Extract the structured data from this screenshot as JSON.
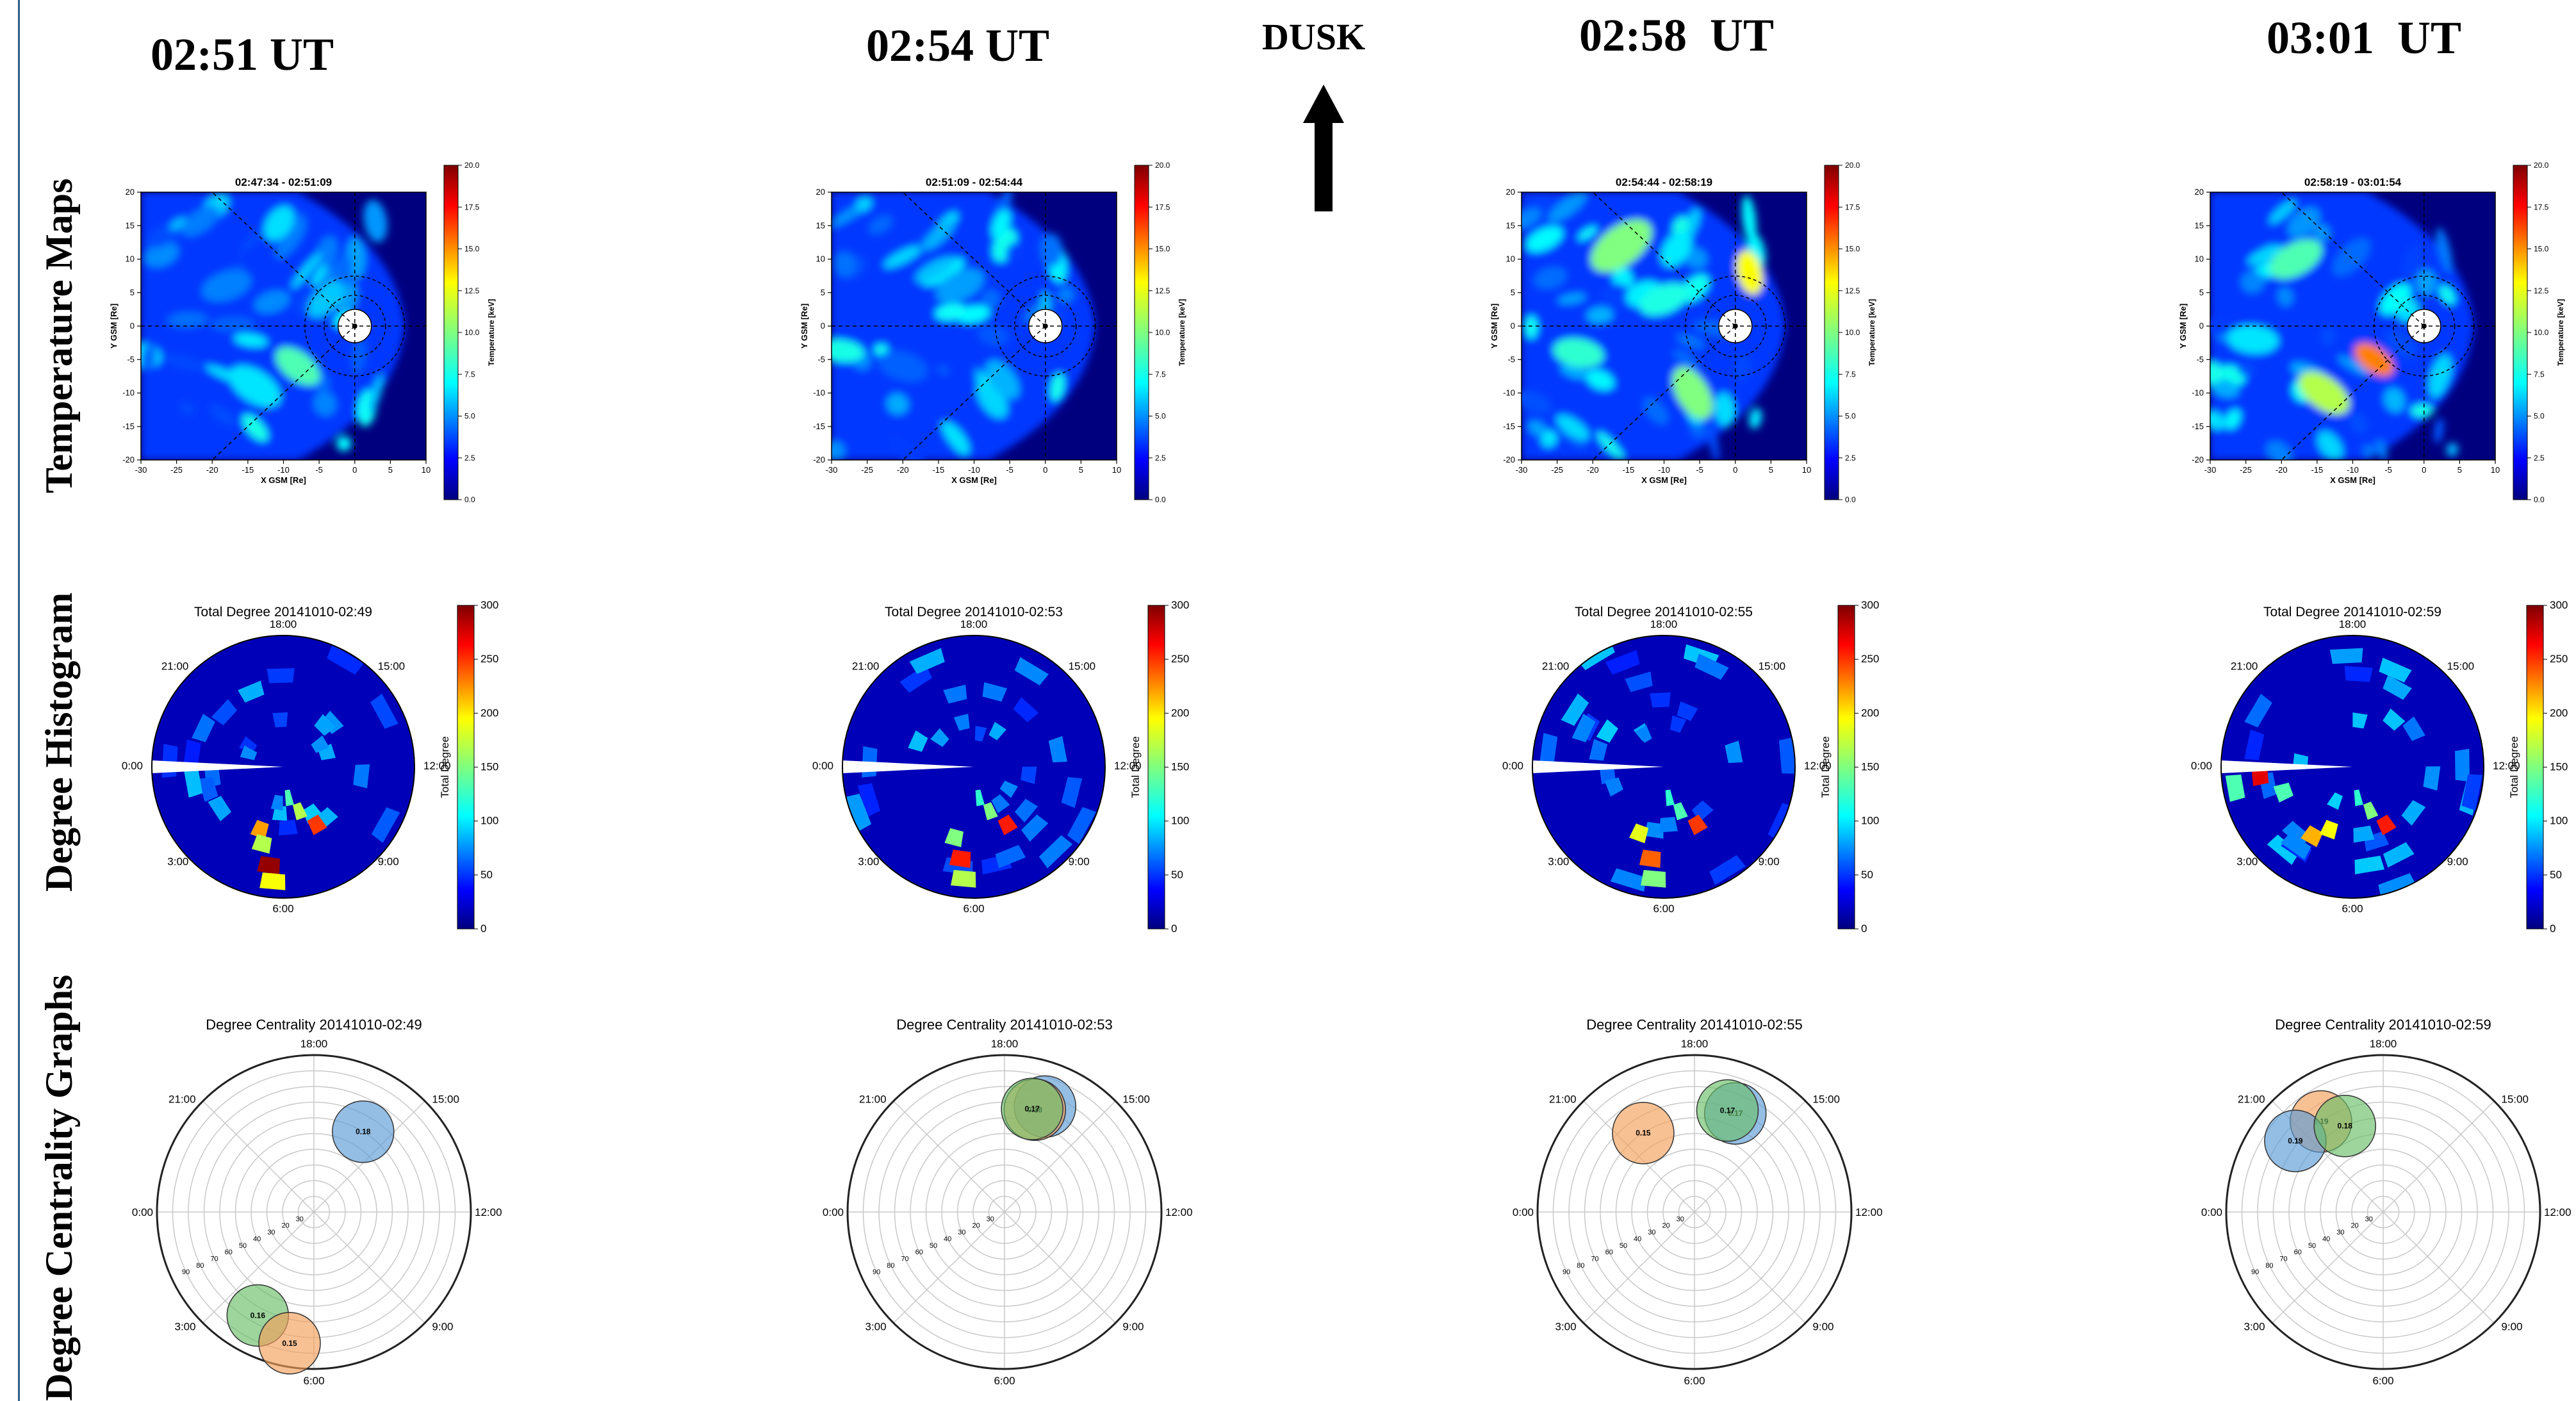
{
  "figure": {
    "column_titles": [
      "02:51 UT",
      "02:54 UT",
      "02:58  UT",
      "03:01  UT"
    ],
    "direction_label": "DUSK",
    "row_labels": [
      "Temperature Maps",
      "Degree Histogram",
      "Degree Centrality  Graphs"
    ],
    "colors": {
      "arrow": "#000000",
      "panel_border": "#2f5f8a",
      "colormap": "jet"
    }
  },
  "chart_data": [
    {
      "type": "heatmap",
      "group": "temperature_maps",
      "titles": [
        "02:47:34 - 02:51:09",
        "02:51:09 - 02:54:44",
        "02:54:44 - 02:58:19",
        "02:58:19 - 03:01:54"
      ],
      "xlabel": "X GSM [Re]",
      "ylabel": "Y GSM [Re]",
      "xlim": [
        -30,
        10
      ],
      "ylim": [
        -20,
        20
      ],
      "x_ticks": [
        "-30",
        "-25",
        "-20",
        "-15",
        "-10",
        "-5",
        "0",
        "5",
        "10"
      ],
      "y_ticks": [
        "20",
        "15",
        "10",
        "5",
        "0",
        "-5",
        "-10",
        "-15",
        "-20"
      ],
      "colorbar": {
        "label": "Temperature [keV]",
        "range": [
          0,
          20
        ],
        "ticks": [
          "20.0",
          "17.5",
          "15.0",
          "12.5",
          "10.0",
          "7.5",
          "5.0",
          "2.5",
          "0.0"
        ]
      },
      "colormap": "jet"
    },
    {
      "type": "heatmap",
      "group": "degree_histogram",
      "titles": [
        "Total Degree 20141010-02:49",
        "Total Degree 20141010-02:53",
        "Total Degree 20141010-02:55",
        "Total Degree 20141010-02:59"
      ],
      "clock_labels": [
        "18:00",
        "15:00",
        "12:00",
        "9:00",
        "6:00",
        "3:00",
        "0:00",
        "21:00"
      ],
      "colorbar": {
        "label": "Total Degree",
        "range": [
          0,
          300
        ],
        "ticks": [
          "300",
          "250",
          "200",
          "150",
          "100",
          "50",
          "0"
        ]
      },
      "colormap": "jet"
    },
    {
      "type": "scatter",
      "group": "degree_centrality",
      "titles": [
        "Degree Centrality 20141010-02:49",
        "Degree Centrality 20141010-02:53",
        "Degree Centrality 20141010-02:55",
        "Degree Centrality 20141010-02:59"
      ],
      "clock_labels": [
        "18:00",
        "15:00",
        "12:00",
        "9:00",
        "6:00",
        "3:00",
        "0:00",
        "21:00"
      ],
      "radial_ticks": [
        "30",
        "20",
        "30",
        "40",
        "50",
        "60",
        "70",
        "80",
        "90"
      ],
      "colors": {
        "blue": "#5b9bd5",
        "orange": "#f4a05a",
        "green": "#6abf69"
      },
      "panels": [
        {
          "points": [
            {
              "color": "blue",
              "mlt": 15.9,
              "radius": 60,
              "value": "0.18"
            },
            {
              "color": "green",
              "mlt": 4.1,
              "radius": 75,
              "value": "0.16"
            },
            {
              "color": "orange",
              "mlt": 5.3,
              "radius": 85,
              "value": "0.15"
            }
          ]
        },
        {
          "points": [
            {
              "color": "blue",
              "mlt": 16.6,
              "radius": 72,
              "value": ""
            },
            {
              "color": "orange",
              "mlt": 16.9,
              "radius": 68,
              "value": "0.18"
            },
            {
              "color": "green",
              "mlt": 17.0,
              "radius": 68,
              "value": "0.17"
            }
          ]
        },
        {
          "points": [
            {
              "color": "orange",
              "mlt": 20.2,
              "radius": 60,
              "value": "0.15"
            },
            {
              "color": "blue",
              "mlt": 16.5,
              "radius": 68,
              "value": "0.17"
            },
            {
              "color": "green",
              "mlt": 16.8,
              "radius": 68,
              "value": "0.17"
            }
          ]
        },
        {
          "points": [
            {
              "color": "orange",
              "mlt": 20.3,
              "radius": 70,
              "value": "0.19"
            },
            {
              "color": "blue",
              "mlt": 21.4,
              "radius": 72,
              "value": "0.19"
            },
            {
              "color": "green",
              "mlt": 19.6,
              "radius": 60,
              "value": "0.18"
            }
          ]
        }
      ]
    }
  ]
}
